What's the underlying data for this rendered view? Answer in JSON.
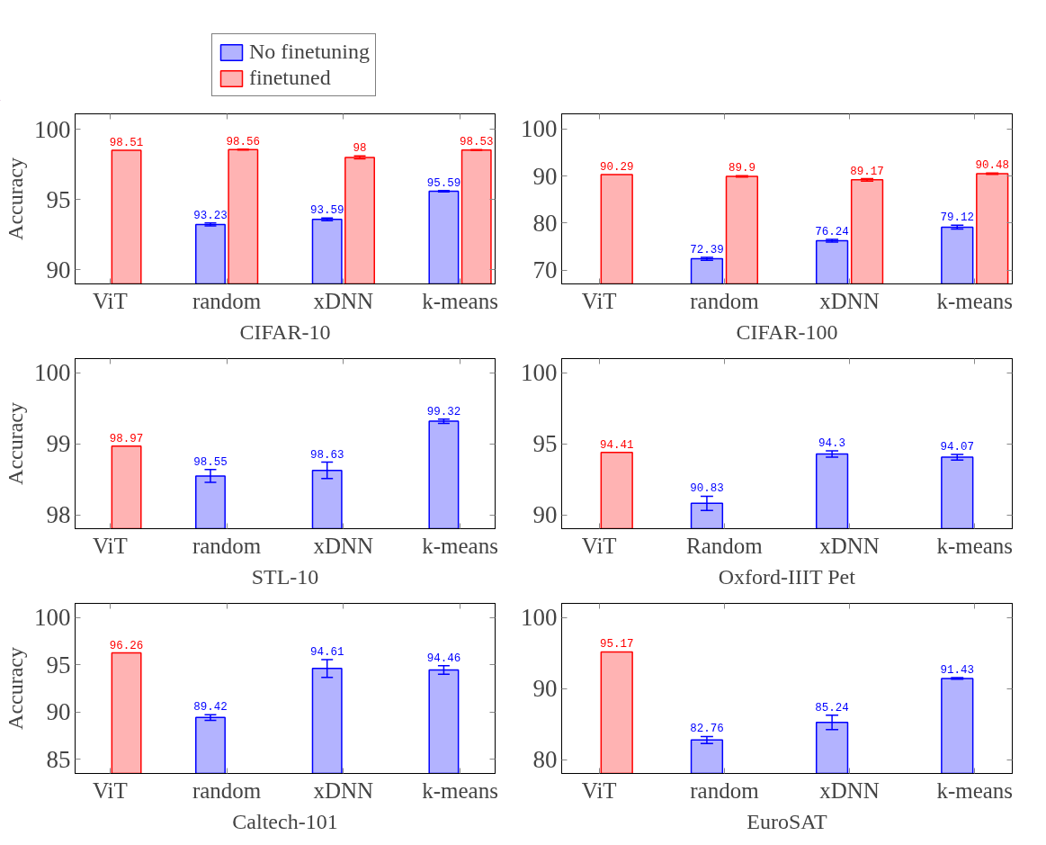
{
  "chart_data": [
    {
      "type": "bar",
      "categories": [
        "ViT",
        "random",
        "xDNN",
        "k-means"
      ],
      "xlabel": "CIFAR-10",
      "ylabel": "Accuracy",
      "ylim": [
        89,
        101.1
      ],
      "yticks": [
        90,
        95,
        100
      ],
      "data_labels": true,
      "legend": "top",
      "series": [
        {
          "name": "No finetuning",
          "color": "#b3b3ff",
          "values": [
            null,
            93.23,
            93.59,
            95.59
          ],
          "errors": [
            null,
            0.1,
            0.1,
            0.05
          ]
        },
        {
          "name": "finetuned",
          "color": "#ffb3b3",
          "values": [
            98.51,
            98.56,
            98,
            98.53
          ],
          "errors": [
            null,
            0.03,
            0.1,
            0.03
          ]
        }
      ]
    },
    {
      "type": "bar",
      "categories": [
        "ViT",
        "random",
        "xDNN",
        "k-means"
      ],
      "xlabel": "CIFAR-100",
      "ylim": [
        67.05,
        103.2
      ],
      "yticks": [
        70,
        80,
        90,
        100
      ],
      "data_labels": true,
      "series": [
        {
          "color": "#b3b3ff",
          "values": [
            null,
            72.39,
            76.24,
            79.12
          ],
          "errors": [
            null,
            0.3,
            0.3,
            0.4
          ]
        },
        {
          "color": "#ffb3b3",
          "values": [
            90.29,
            89.9,
            89.17,
            90.48
          ],
          "errors": [
            null,
            0.15,
            0.25,
            0.15
          ]
        }
      ]
    },
    {
      "type": "bar",
      "categories": [
        "ViT",
        "random",
        "xDNN",
        "k-means"
      ],
      "xlabel": "STL-10",
      "ylabel": "Accuracy",
      "ylim": [
        97.81,
        100.2
      ],
      "yticks": [
        98,
        99,
        100
      ],
      "data_labels": true,
      "series": [
        {
          "color": "#b3b3ff",
          "values": [
            null,
            98.55,
            98.63,
            99.32
          ],
          "errors": [
            null,
            0.09,
            0.115,
            0.03
          ]
        },
        {
          "color": "#ffb3b3",
          "values": [
            98.97,
            null,
            null,
            null
          ]
        }
      ]
    },
    {
      "type": "bar",
      "categories": [
        "ViT",
        "Random",
        "xDNN",
        "k-means"
      ],
      "xlabel": "Oxford-IIIT Pet",
      "ylim": [
        89.05,
        101
      ],
      "yticks": [
        90,
        95,
        100
      ],
      "data_labels": true,
      "series": [
        {
          "color": "#b3b3ff",
          "values": [
            null,
            90.83,
            94.3,
            94.07
          ],
          "errors": [
            null,
            0.5,
            0.22,
            0.2
          ]
        },
        {
          "color": "#ffb3b3",
          "values": [
            94.41,
            null,
            null,
            null
          ]
        }
      ]
    },
    {
      "type": "bar",
      "categories": [
        "ViT",
        "random",
        "xDNN",
        "k-means"
      ],
      "xlabel": "Caltech-101",
      "ylabel": "Accuracy",
      "ylim": [
        83.5,
        101.5
      ],
      "yticks": [
        85,
        90,
        95,
        100
      ],
      "data_labels": true,
      "series": [
        {
          "color": "#b3b3ff",
          "values": [
            null,
            89.42,
            94.61,
            94.46
          ],
          "errors": [
            null,
            0.3,
            0.94,
            0.45
          ]
        },
        {
          "color": "#ffb3b3",
          "values": [
            96.26,
            null,
            null,
            null
          ]
        }
      ]
    },
    {
      "type": "bar",
      "categories": [
        "ViT",
        "random",
        "xDNN",
        "k-means"
      ],
      "xlabel": "EuroSAT",
      "ylim": [
        78.05,
        102
      ],
      "yticks": [
        80,
        90,
        100
      ],
      "data_labels": true,
      "series": [
        {
          "color": "#b3b3ff",
          "values": [
            null,
            82.76,
            85.24,
            91.43
          ],
          "errors": [
            null,
            0.5,
            1.0,
            0.1
          ]
        },
        {
          "color": "#ffb3b3",
          "values": [
            95.17,
            null,
            null,
            null
          ]
        }
      ]
    }
  ]
}
